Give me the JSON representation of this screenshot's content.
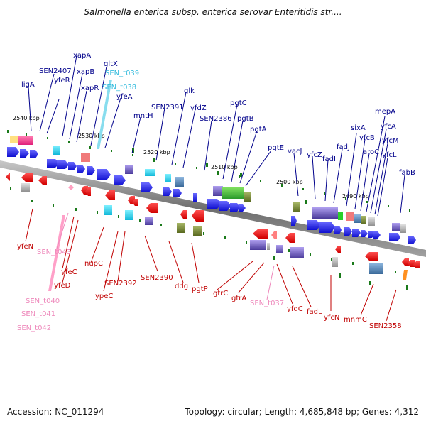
{
  "header": {
    "title": "Salmonella enterica subsp. enterica serovar Enteritidis str...."
  },
  "footer": {
    "accession": "Accession: NC_011294",
    "summary": "Topology: circular; Length: 4,685,848 bp; Genes: 4,312"
  },
  "colors": {
    "forward_label": "#00008b",
    "reverse_label": "#c00000",
    "trna_label_forward": "#33bbdd",
    "trna_label_reverse": "#ee88bb",
    "backbone": "#7a7a7a",
    "tick": "#1a7a1a"
  },
  "map": {
    "scale_labels": [
      "2540 kbp",
      "2530 kbp",
      "2520 kbp",
      "2510 kbp",
      "2500 kbp",
      "2490 kbp"
    ],
    "forward_genes": [
      "ligA",
      "SEN2407",
      "yfeR",
      "xapA",
      "xapB",
      "xapR",
      "gltX",
      "SEN_t039",
      "SEN_t038",
      "yfeA",
      "mntH",
      "SEN2391",
      "glk",
      "yfdZ",
      "SEN2386",
      "pgtC",
      "pgtB",
      "pgtA",
      "pgtE",
      "vacJ",
      "yfcZ",
      "fadI",
      "fadJ",
      "sixA",
      "yfcB",
      "aroC",
      "mepA",
      "yfcA",
      "yfcM",
      "yfcL",
      "fabB"
    ],
    "reverse_genes": [
      "yfeN",
      "SEN_t043",
      "yfeC",
      "yfeD",
      "SEN_t040",
      "SEN_t041",
      "SEN_t042",
      "nupC",
      "ypeC",
      "SEN2392",
      "SEN2390",
      "ddg",
      "pgtP",
      "gtrC",
      "gtrA",
      "SEN_t037",
      "yfdC",
      "fadL",
      "yfcN",
      "mnmC",
      "SEN2358"
    ]
  }
}
